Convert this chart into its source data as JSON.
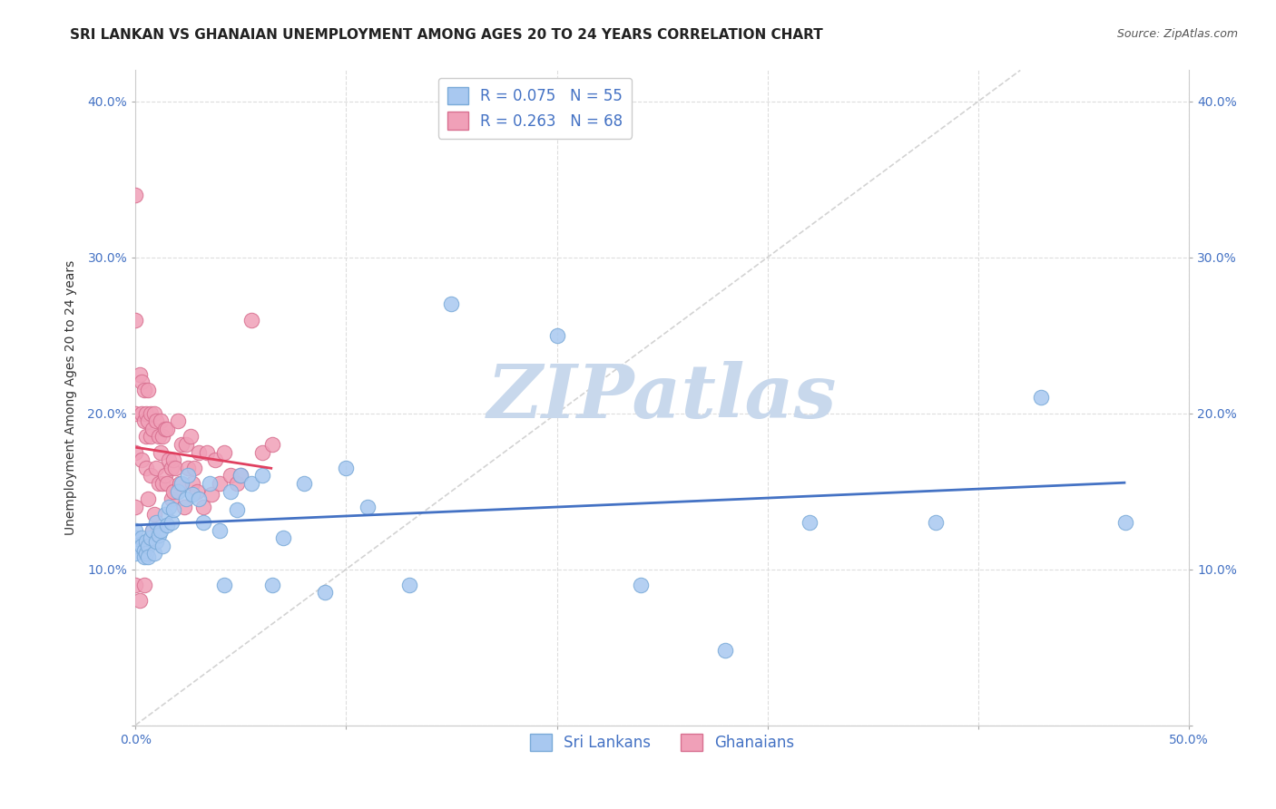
{
  "title": "SRI LANKAN VS GHANAIAN UNEMPLOYMENT AMONG AGES 20 TO 24 YEARS CORRELATION CHART",
  "source": "Source: ZipAtlas.com",
  "ylabel": "Unemployment Among Ages 20 to 24 years",
  "xlim": [
    0.0,
    0.5
  ],
  "ylim": [
    0.0,
    0.42
  ],
  "x_ticks": [
    0.0,
    0.1,
    0.2,
    0.3,
    0.4,
    0.5
  ],
  "x_tick_labels_left": "0.0%",
  "x_tick_labels_right": "50.0%",
  "y_ticks": [
    0.0,
    0.1,
    0.2,
    0.3,
    0.4
  ],
  "y_tick_labels": [
    "",
    "10.0%",
    "20.0%",
    "30.0%",
    "40.0%"
  ],
  "sri_lanka_color": "#a8c8f0",
  "ghana_color": "#f0a0b8",
  "sri_lanka_edge": "#7aaad8",
  "ghana_edge": "#d87090",
  "trend_sri_lanka_color": "#4472c4",
  "trend_ghana_color": "#e04060",
  "diagonal_color": "#c8c8c8",
  "watermark_color": "#c8d8ec",
  "legend_box_sri_lanka": "#a8c8f0",
  "legend_box_ghana": "#f0a0b8",
  "legend_text_color": "#4472c4",
  "R_sri_lanka": 0.075,
  "N_sri_lanka": 55,
  "R_ghana": 0.263,
  "N_ghana": 68,
  "sl_x": [
    0.0,
    0.0,
    0.0,
    0.0,
    0.003,
    0.003,
    0.004,
    0.004,
    0.005,
    0.005,
    0.006,
    0.006,
    0.007,
    0.008,
    0.009,
    0.01,
    0.01,
    0.011,
    0.012,
    0.013,
    0.014,
    0.015,
    0.016,
    0.017,
    0.018,
    0.02,
    0.022,
    0.024,
    0.025,
    0.027,
    0.03,
    0.032,
    0.035,
    0.04,
    0.042,
    0.045,
    0.048,
    0.05,
    0.055,
    0.06,
    0.065,
    0.07,
    0.08,
    0.09,
    0.1,
    0.11,
    0.13,
    0.15,
    0.2,
    0.24,
    0.28,
    0.32,
    0.38,
    0.43,
    0.47
  ],
  "sl_y": [
    0.12,
    0.115,
    0.11,
    0.125,
    0.12,
    0.115,
    0.112,
    0.108,
    0.118,
    0.11,
    0.115,
    0.108,
    0.12,
    0.125,
    0.11,
    0.13,
    0.118,
    0.122,
    0.125,
    0.115,
    0.135,
    0.128,
    0.14,
    0.13,
    0.138,
    0.15,
    0.155,
    0.145,
    0.16,
    0.148,
    0.145,
    0.13,
    0.155,
    0.125,
    0.09,
    0.15,
    0.138,
    0.16,
    0.155,
    0.16,
    0.09,
    0.12,
    0.155,
    0.085,
    0.165,
    0.14,
    0.09,
    0.27,
    0.25,
    0.09,
    0.048,
    0.13,
    0.13,
    0.21,
    0.13
  ],
  "gh_x": [
    0.0,
    0.0,
    0.0,
    0.0,
    0.0,
    0.0,
    0.002,
    0.002,
    0.003,
    0.003,
    0.003,
    0.004,
    0.004,
    0.004,
    0.005,
    0.005,
    0.005,
    0.006,
    0.006,
    0.006,
    0.007,
    0.007,
    0.007,
    0.008,
    0.008,
    0.009,
    0.009,
    0.01,
    0.01,
    0.011,
    0.011,
    0.012,
    0.012,
    0.013,
    0.013,
    0.014,
    0.014,
    0.015,
    0.015,
    0.016,
    0.017,
    0.017,
    0.018,
    0.018,
    0.019,
    0.02,
    0.021,
    0.022,
    0.023,
    0.024,
    0.025,
    0.026,
    0.027,
    0.028,
    0.029,
    0.03,
    0.032,
    0.034,
    0.036,
    0.038,
    0.04,
    0.042,
    0.045,
    0.048,
    0.05,
    0.055,
    0.06,
    0.065
  ],
  "gh_y": [
    0.34,
    0.26,
    0.2,
    0.175,
    0.14,
    0.09,
    0.225,
    0.08,
    0.22,
    0.2,
    0.17,
    0.215,
    0.195,
    0.09,
    0.2,
    0.185,
    0.165,
    0.215,
    0.195,
    0.145,
    0.2,
    0.185,
    0.16,
    0.19,
    0.125,
    0.2,
    0.135,
    0.195,
    0.165,
    0.185,
    0.155,
    0.195,
    0.175,
    0.185,
    0.155,
    0.19,
    0.16,
    0.19,
    0.155,
    0.17,
    0.165,
    0.145,
    0.17,
    0.15,
    0.165,
    0.195,
    0.155,
    0.18,
    0.14,
    0.18,
    0.165,
    0.185,
    0.155,
    0.165,
    0.15,
    0.175,
    0.14,
    0.175,
    0.148,
    0.17,
    0.155,
    0.175,
    0.16,
    0.155,
    0.16,
    0.26,
    0.175,
    0.18
  ],
  "background_color": "#ffffff",
  "grid_color": "#dddddd",
  "title_fontsize": 11,
  "axis_label_fontsize": 10,
  "tick_fontsize": 10,
  "legend_fontsize": 12,
  "watermark_fontsize": 60,
  "source_fontsize": 9
}
